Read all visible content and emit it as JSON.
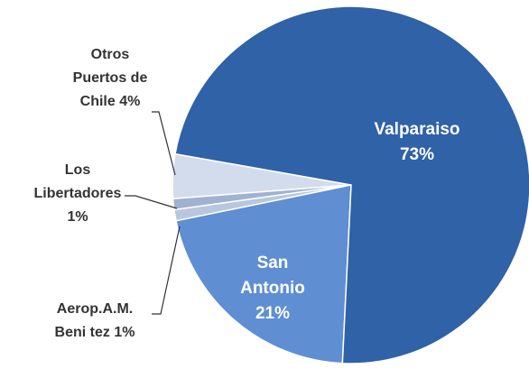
{
  "chart_data": {
    "type": "pie",
    "categories": [
      "Valparaiso",
      "San Antonio",
      "Aerop.A.M. Beni tez",
      "Los Libertadores",
      "Otros Puertos de Chile"
    ],
    "values": [
      73,
      21,
      1,
      1,
      4
    ],
    "value_labels": [
      "73%",
      "21%",
      "1%",
      "1%",
      "4%"
    ],
    "colors": [
      "#2f62a6",
      "#5f8ed2",
      "#b9c7de",
      "#9fb2d2",
      "#d3dcec"
    ]
  }
}
